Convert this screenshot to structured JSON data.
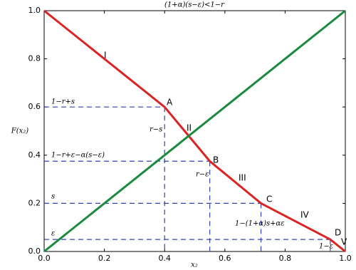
{
  "chart_data": {
    "type": "line",
    "title": "(1+α)(s−ε)<1−r",
    "x_label": "x₂",
    "y_label": "F(x₂)",
    "xlim": [
      0,
      1
    ],
    "ylim": [
      0,
      1
    ],
    "xticks": [
      {
        "value": 0,
        "label": "0.0"
      },
      0.2,
      0.4,
      0.6,
      0.8,
      {
        "value": 1,
        "label": "1.0"
      }
    ],
    "yticks": [
      {
        "value": 0,
        "label": "0.0"
      },
      0.2,
      0.4,
      0.6,
      0.8,
      {
        "value": 1,
        "label": "1.0"
      }
    ],
    "series": [
      {
        "color": "#dd2222",
        "x": [
          0,
          0.4,
          0.55,
          0.72,
          0.95,
          1.0
        ],
        "values": [
          1,
          0.6,
          0.375,
          0.2,
          0.05,
          0
        ]
      },
      {
        "color": "#1a8a3c",
        "x": [
          0,
          1
        ],
        "values": [
          0,
          1
        ]
      }
    ],
    "guide_color": "#3344aa",
    "annotations": [
      "1−r+s",
      "A",
      "r−s",
      "II",
      "I",
      "1−r+ε−α(s−ε)",
      "B",
      "r−ε",
      "III",
      "s",
      "C",
      "IV",
      "1−(1+α)s+αε",
      "ε",
      "D",
      "1−ε",
      "V"
    ]
  }
}
